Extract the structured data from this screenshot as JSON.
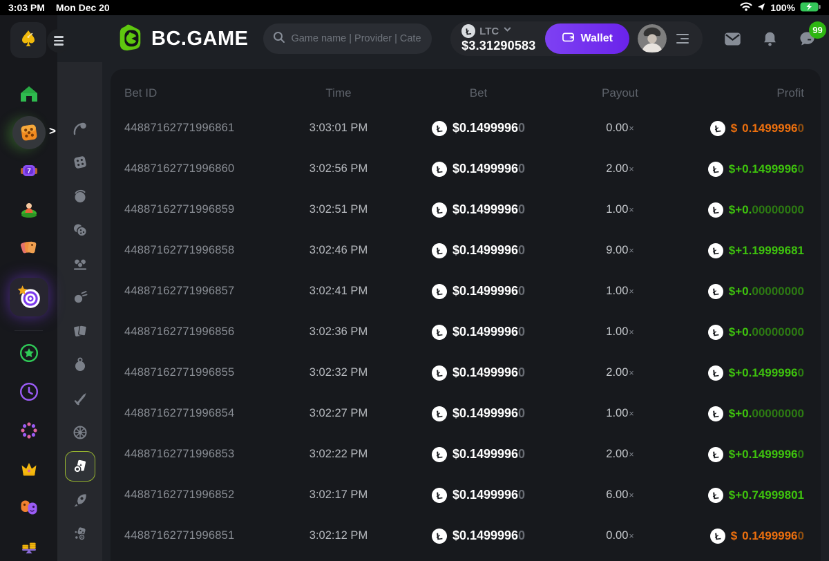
{
  "status_bar": {
    "time": "3:03 PM",
    "date": "Mon Dec 20",
    "battery_percent": "100%"
  },
  "header": {
    "brand": "BC.GAME",
    "search_placeholder": "Game name | Provider | Cate",
    "currency": {
      "code": "LTC",
      "balance": "$3.31290583",
      "coin_symbol": "Ł"
    },
    "wallet_label": "Wallet",
    "chat_badge": "99"
  },
  "colors": {
    "brand_green": "#5fc70f",
    "wallet_purple": "#7a36f1",
    "win_green": "#3ec30d",
    "loss_orange": "#ee700e",
    "badge_green": "#2eb612",
    "battery_green": "#34c759"
  },
  "sidebar": {
    "main_items": [
      {
        "name": "home",
        "icon": "home-icon",
        "active": false
      },
      {
        "name": "casino",
        "icon": "dice-icon",
        "active": true,
        "expanded": true
      },
      {
        "name": "slots",
        "icon": "slots-icon",
        "active": false
      },
      {
        "name": "live-casino",
        "icon": "live-casino-icon",
        "active": false
      },
      {
        "name": "promotions",
        "icon": "shopping-tags-icon",
        "active": false
      },
      {
        "name": "originals",
        "icon": "target-icon",
        "active": true
      },
      {
        "name": "favorites",
        "icon": "star-icon",
        "active": false
      },
      {
        "name": "recent",
        "icon": "clock-icon",
        "active": false
      },
      {
        "name": "challenges",
        "icon": "dots-ring-icon",
        "active": false
      },
      {
        "name": "vip",
        "icon": "crown-icon",
        "active": false
      },
      {
        "name": "social",
        "icon": "masks-icon",
        "active": false
      },
      {
        "name": "staking",
        "icon": "coins-scale-icon",
        "active": false
      }
    ],
    "sub_items": [
      {
        "name": "crash",
        "icon": "crash-icon",
        "active": false
      },
      {
        "name": "dice",
        "icon": "game-dice-icon",
        "active": false
      },
      {
        "name": "coinflip",
        "icon": "coinflip-icon",
        "active": false
      },
      {
        "name": "double-dice",
        "icon": "double-dice-icon",
        "active": false
      },
      {
        "name": "keno",
        "icon": "keno-icon",
        "active": false
      },
      {
        "name": "limbo",
        "icon": "limbo-icon",
        "active": false
      },
      {
        "name": "cards",
        "icon": "cards-icon",
        "active": false
      },
      {
        "name": "bomb",
        "icon": "bomb-icon",
        "active": false
      },
      {
        "name": "hilo",
        "icon": "hilo-icon",
        "active": false
      },
      {
        "name": "wheel",
        "icon": "wheel-icon",
        "active": false
      },
      {
        "name": "video-poker",
        "icon": "video-poker-icon",
        "active": true
      },
      {
        "name": "rocket",
        "icon": "rocket-icon",
        "active": false
      },
      {
        "name": "dice-coin",
        "icon": "dice-coin-icon",
        "active": false
      }
    ]
  },
  "table": {
    "columns": [
      "Bet ID",
      "Time",
      "Bet",
      "Payout",
      "Profit"
    ],
    "coin_symbol": "Ł",
    "multiplier_symbol": "×",
    "rows": [
      {
        "id": "44887162771996861",
        "time": "3:03:01 PM",
        "bet": {
          "bright": "$0.1499996",
          "dim": "0"
        },
        "payout": "0.00",
        "profit": {
          "type": "loss",
          "prefix": "$",
          "bright": "0.1499996",
          "dim": "0"
        }
      },
      {
        "id": "44887162771996860",
        "time": "3:02:56 PM",
        "bet": {
          "bright": "$0.1499996",
          "dim": "0"
        },
        "payout": "2.00",
        "profit": {
          "type": "win",
          "prefix": "$+",
          "bright": "0.1499996",
          "dim": "0"
        }
      },
      {
        "id": "44887162771996859",
        "time": "3:02:51 PM",
        "bet": {
          "bright": "$0.1499996",
          "dim": "0"
        },
        "payout": "1.00",
        "profit": {
          "type": "win",
          "prefix": "$+",
          "bright": "0.",
          "dim": "00000000"
        }
      },
      {
        "id": "44887162771996858",
        "time": "3:02:46 PM",
        "bet": {
          "bright": "$0.1499996",
          "dim": "0"
        },
        "payout": "9.00",
        "profit": {
          "type": "win",
          "prefix": "$+",
          "bright": "1.19999681",
          "dim": ""
        }
      },
      {
        "id": "44887162771996857",
        "time": "3:02:41 PM",
        "bet": {
          "bright": "$0.1499996",
          "dim": "0"
        },
        "payout": "1.00",
        "profit": {
          "type": "win",
          "prefix": "$+",
          "bright": "0.",
          "dim": "00000000"
        }
      },
      {
        "id": "44887162771996856",
        "time": "3:02:36 PM",
        "bet": {
          "bright": "$0.1499996",
          "dim": "0"
        },
        "payout": "1.00",
        "profit": {
          "type": "win",
          "prefix": "$+",
          "bright": "0.",
          "dim": "00000000"
        }
      },
      {
        "id": "44887162771996855",
        "time": "3:02:32 PM",
        "bet": {
          "bright": "$0.1499996",
          "dim": "0"
        },
        "payout": "2.00",
        "profit": {
          "type": "win",
          "prefix": "$+",
          "bright": "0.1499996",
          "dim": "0"
        }
      },
      {
        "id": "44887162771996854",
        "time": "3:02:27 PM",
        "bet": {
          "bright": "$0.1499996",
          "dim": "0"
        },
        "payout": "1.00",
        "profit": {
          "type": "win",
          "prefix": "$+",
          "bright": "0.",
          "dim": "00000000"
        }
      },
      {
        "id": "44887162771996853",
        "time": "3:02:22 PM",
        "bet": {
          "bright": "$0.1499996",
          "dim": "0"
        },
        "payout": "2.00",
        "profit": {
          "type": "win",
          "prefix": "$+",
          "bright": "0.1499996",
          "dim": "0"
        }
      },
      {
        "id": "44887162771996852",
        "time": "3:02:17 PM",
        "bet": {
          "bright": "$0.1499996",
          "dim": "0"
        },
        "payout": "6.00",
        "profit": {
          "type": "win",
          "prefix": "$+",
          "bright": "0.74999801",
          "dim": ""
        }
      },
      {
        "id": "44887162771996851",
        "time": "3:02:12 PM",
        "bet": {
          "bright": "$0.1499996",
          "dim": "0"
        },
        "payout": "0.00",
        "profit": {
          "type": "loss",
          "prefix": "$",
          "bright": "0.1499996",
          "dim": "0"
        }
      }
    ]
  }
}
